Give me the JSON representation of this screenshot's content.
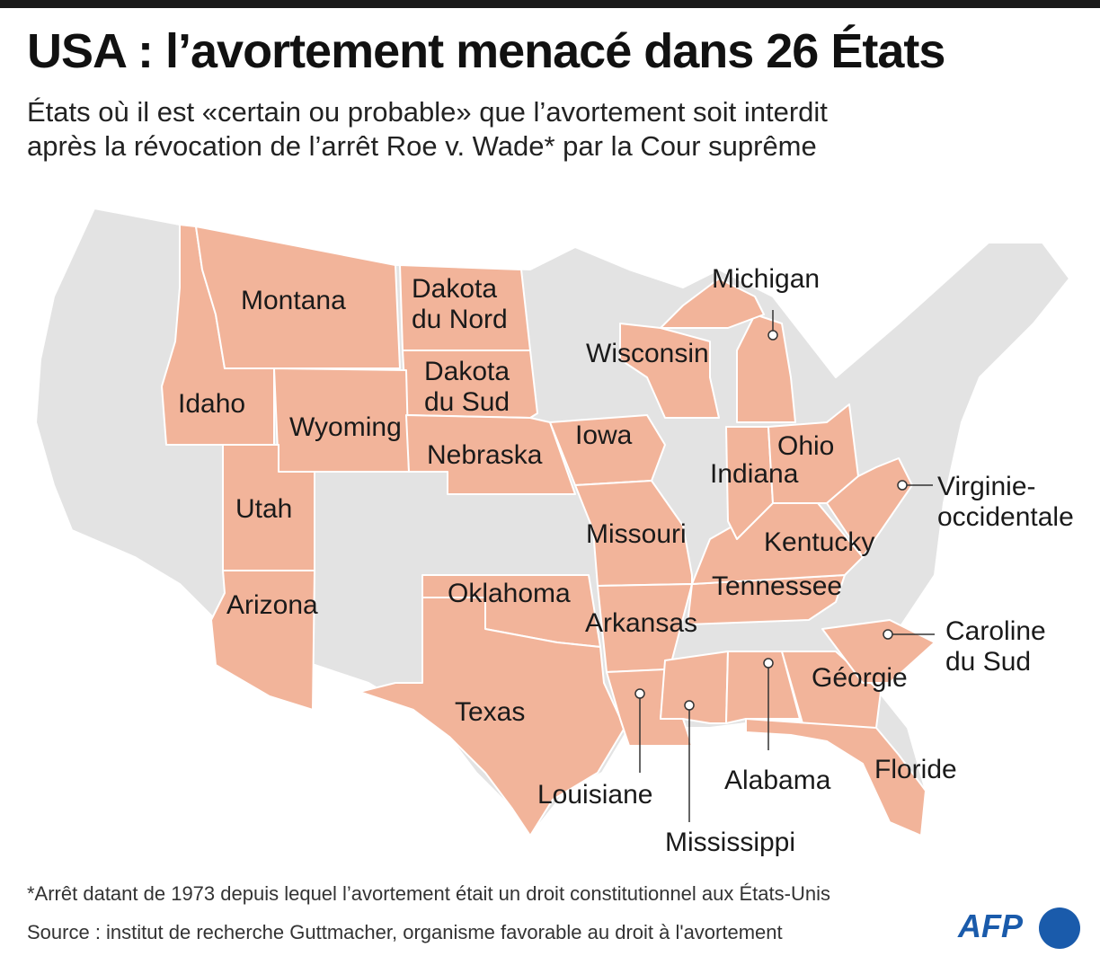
{
  "title": "USA : l’avortement menacé dans 26 États",
  "subtitle_line1": "États où il est «certain ou probable» que l’avortement soit interdit",
  "subtitle_line2": "après la révocation de l’arrêt Roe v. Wade* par la Cour suprême",
  "colors": {
    "threatened": "#f2b49a",
    "other": "#e3e3e3",
    "border": "#ffffff",
    "afp": "#1a5bab"
  },
  "states": {
    "montana": "Montana",
    "idaho": "Idaho",
    "wyoming": "Wyoming",
    "utah": "Utah",
    "arizona": "Arizona",
    "nd": "Dakota du Nord",
    "nd1": "Dakota",
    "nd2": "du Nord",
    "sd1": "Dakota",
    "sd2": "du Sud",
    "nebraska": "Nebraska",
    "oklahoma": "Oklahoma",
    "texas": "Texas",
    "iowa": "Iowa",
    "missouri": "Missouri",
    "arkansas": "Arkansas",
    "louisiane": "Louisiane",
    "mississippi": "Mississippi",
    "alabama": "Alabama",
    "georgie": "Géorgie",
    "floride": "Floride",
    "sc1": "Caroline",
    "sc2": "du Sud",
    "tennessee": "Tennessee",
    "kentucky": "Kentucky",
    "indiana": "Indiana",
    "ohio": "Ohio",
    "wv1": "Virginie-",
    "wv2": "occidentale",
    "michigan": "Michigan",
    "wisconsin": "Wisconsin"
  },
  "footnote": "*Arrêt datant de 1973 depuis lequel l’avortement était un droit constitutionnel aux États-Unis",
  "source": "Source : institut de recherche Guttmacher, organisme favorable au droit à l'avortement",
  "logo": "AFP"
}
